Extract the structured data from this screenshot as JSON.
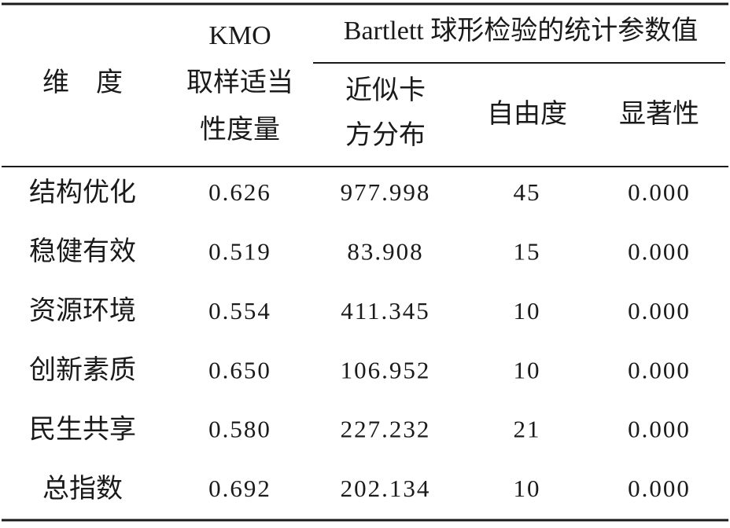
{
  "table": {
    "header": {
      "dimension": "维　度",
      "kmo": [
        "KMO",
        "取样适当",
        "性度量"
      ],
      "bartlett": "Bartlett 球形检验的统计参数值",
      "chi_square": [
        "近似卡",
        "方分布"
      ],
      "df": "自由度",
      "sig": "显著性"
    },
    "rows": [
      [
        "结构优化",
        "0.626",
        "977.998",
        "45",
        "0.000"
      ],
      [
        "稳健有效",
        "0.519",
        "83.908",
        "15",
        "0.000"
      ],
      [
        "资源环境",
        "0.554",
        "411.345",
        "10",
        "0.000"
      ],
      [
        "创新素质",
        "0.650",
        "106.952",
        "10",
        "0.000"
      ],
      [
        "民生共享",
        "0.580",
        "227.232",
        "21",
        "0.000"
      ],
      [
        "总指数",
        "0.692",
        "202.134",
        "10",
        "0.000"
      ]
    ]
  }
}
